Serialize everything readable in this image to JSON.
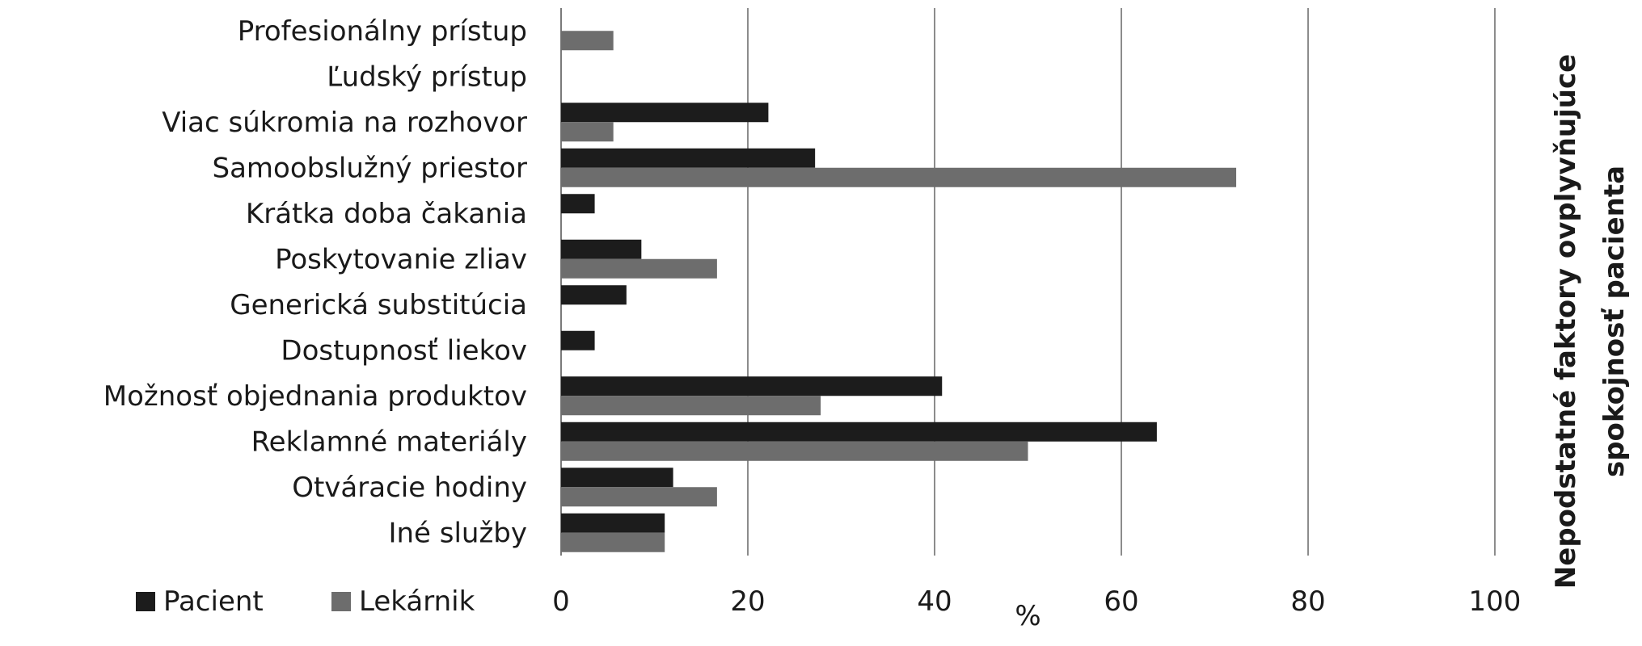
{
  "chart_data": {
    "type": "bar",
    "orientation": "horizontal",
    "categories": [
      "Profesionálny prístup",
      "Ľudský prístup",
      "Viac súkromia na rozhovor",
      "Samoobslužný priestor",
      "Krátka doba čakania",
      "Poskytovanie zliav",
      "Generická substitúcia",
      "Dostupnosť liekov",
      "Možnosť objednania produktov",
      "Reklamné materiály",
      "Otváracie hodiny",
      "Iné služby"
    ],
    "series": [
      {
        "name": "Pacient",
        "color": "#1c1c1c",
        "values": [
          0,
          0,
          22.2,
          27.2,
          3.6,
          8.6,
          7.0,
          3.6,
          40.8,
          63.8,
          12.0,
          11.1
        ]
      },
      {
        "name": "Lekárnik",
        "color": "#6d6d6d",
        "values": [
          5.6,
          0,
          5.6,
          72.3,
          0,
          16.7,
          0,
          0,
          27.8,
          50.0,
          16.7,
          11.1
        ]
      }
    ],
    "xlabel": "%",
    "ylabel": "Nepodstatné faktory ovplyvňujúce spokojnosť pacienta",
    "xlim": [
      0,
      100
    ],
    "xticks": [
      0,
      20,
      40,
      60,
      80,
      100
    ],
    "grid": true,
    "legend_position": "bottom-left"
  }
}
